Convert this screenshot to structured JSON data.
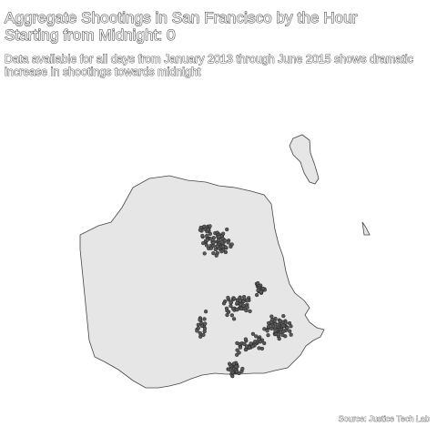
{
  "title_line1": "Aggregate Shootings in San Francisco by the Hour",
  "title_line2": "Starting from Midnight: 0",
  "subtitle": "Data available for all days from January 2013 through June 2015 shows dramatic increase in shootings towards midnight",
  "caption": "Source: Justice Tech Lab",
  "colors": {
    "land_fill": "#e6e6e6",
    "land_stroke": "#444444",
    "point_fill": "#5a5a5a",
    "point_stroke": "#222222"
  },
  "chart_data": {
    "type": "scatter",
    "description": "shooting incident locations on San Francisco map",
    "x": [],
    "y": []
  }
}
